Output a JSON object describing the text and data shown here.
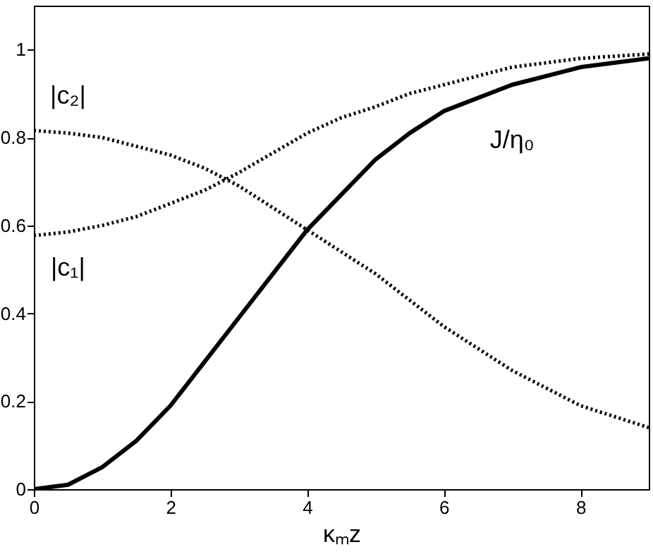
{
  "chart_data": {
    "type": "line",
    "xlabel": "κₘz",
    "x": [
      0,
      0.5,
      1,
      1.5,
      2,
      2.5,
      3,
      3.5,
      4,
      4.5,
      5,
      5.5,
      6,
      7,
      8,
      9
    ],
    "series": [
      {
        "name": "|c₂|",
        "color": "#000000",
        "line_style": "dotted",
        "values": [
          0.816,
          0.81,
          0.8,
          0.78,
          0.76,
          0.73,
          0.69,
          0.64,
          0.59,
          0.54,
          0.49,
          0.43,
          0.37,
          0.27,
          0.19,
          0.14
        ]
      },
      {
        "name": "|c₁|",
        "color": "#000000",
        "line_style": "dotted",
        "values": [
          0.577,
          0.585,
          0.6,
          0.62,
          0.65,
          0.68,
          0.72,
          0.765,
          0.81,
          0.845,
          0.87,
          0.9,
          0.92,
          0.96,
          0.98,
          0.99
        ]
      },
      {
        "name": "J/η₀",
        "color": "#000000",
        "line_style": "solid",
        "values": [
          0,
          0.01,
          0.05,
          0.11,
          0.19,
          0.29,
          0.39,
          0.49,
          0.59,
          0.67,
          0.75,
          0.81,
          0.86,
          0.92,
          0.96,
          0.98
        ]
      }
    ],
    "xlim": [
      0,
      9
    ],
    "xticks": [
      0,
      2,
      4,
      6,
      8
    ],
    "ylim": [
      0,
      1.1
    ],
    "yticks": [
      0,
      0.2,
      0.4,
      0.6,
      0.8,
      1
    ],
    "marker": "none"
  }
}
